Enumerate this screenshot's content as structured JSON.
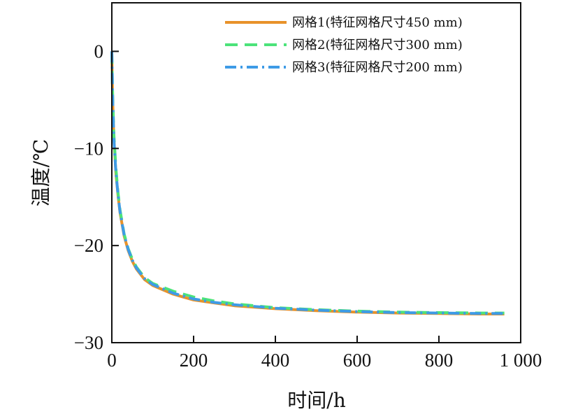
{
  "chart_data": {
    "type": "line",
    "xlabel": "时间/h",
    "ylabel": "温度/℃",
    "xlim": [
      0,
      1000
    ],
    "ylim": [
      -30,
      5
    ],
    "x_ticks": [
      0,
      200,
      400,
      600,
      800,
      1000
    ],
    "x_tick_labels": [
      "0",
      "200",
      "400",
      "600",
      "800",
      "1 000"
    ],
    "y_ticks": [
      0,
      -10,
      -20,
      -30
    ],
    "y_tick_labels": [
      "0",
      "−10",
      "−20",
      "−30"
    ],
    "grid": false,
    "legend_position": "top-right",
    "series": [
      {
        "name": "网格1(特征网格尺寸450 mm)",
        "color": "#E8922A",
        "dash": "solid",
        "x": [
          0,
          2,
          5,
          10,
          15,
          20,
          30,
          40,
          50,
          60,
          80,
          100,
          150,
          200,
          250,
          300,
          400,
          500,
          600,
          700,
          800,
          900,
          960
        ],
        "y": [
          0,
          -5,
          -9,
          -12.5,
          -14.8,
          -16.6,
          -19,
          -20.5,
          -21.6,
          -22.4,
          -23.5,
          -24.1,
          -25,
          -25.6,
          -25.9,
          -26.2,
          -26.5,
          -26.7,
          -26.85,
          -26.95,
          -27,
          -27.05,
          -27.05
        ]
      },
      {
        "name": "网格2(特征网格尺寸300 mm)",
        "color": "#4CE37A",
        "dash": "dashed",
        "x": [
          0,
          2,
          5,
          10,
          15,
          20,
          30,
          40,
          50,
          60,
          80,
          100,
          150,
          200,
          250,
          300,
          400,
          500,
          600,
          700,
          800,
          900,
          960
        ],
        "y": [
          0,
          -4.5,
          -8.5,
          -12,
          -14.5,
          -16.3,
          -18.8,
          -20.3,
          -21.4,
          -22.2,
          -23.3,
          -23.9,
          -24.7,
          -25.3,
          -25.7,
          -26,
          -26.4,
          -26.6,
          -26.75,
          -26.85,
          -26.9,
          -26.95,
          -26.95
        ]
      },
      {
        "name": "网格3(特征网格尺寸200 mm)",
        "color": "#3E9BE6",
        "dash": "dashdot",
        "x": [
          0,
          2,
          5,
          10,
          15,
          20,
          30,
          40,
          50,
          60,
          80,
          100,
          150,
          200,
          250,
          300,
          400,
          500,
          600,
          700,
          800,
          900,
          960
        ],
        "y": [
          0,
          -5,
          -9,
          -12.4,
          -14.7,
          -16.5,
          -18.9,
          -20.4,
          -21.5,
          -22.3,
          -23.4,
          -24,
          -24.9,
          -25.5,
          -25.85,
          -26.1,
          -26.45,
          -26.65,
          -26.8,
          -26.9,
          -26.95,
          -27,
          -27
        ]
      }
    ]
  }
}
